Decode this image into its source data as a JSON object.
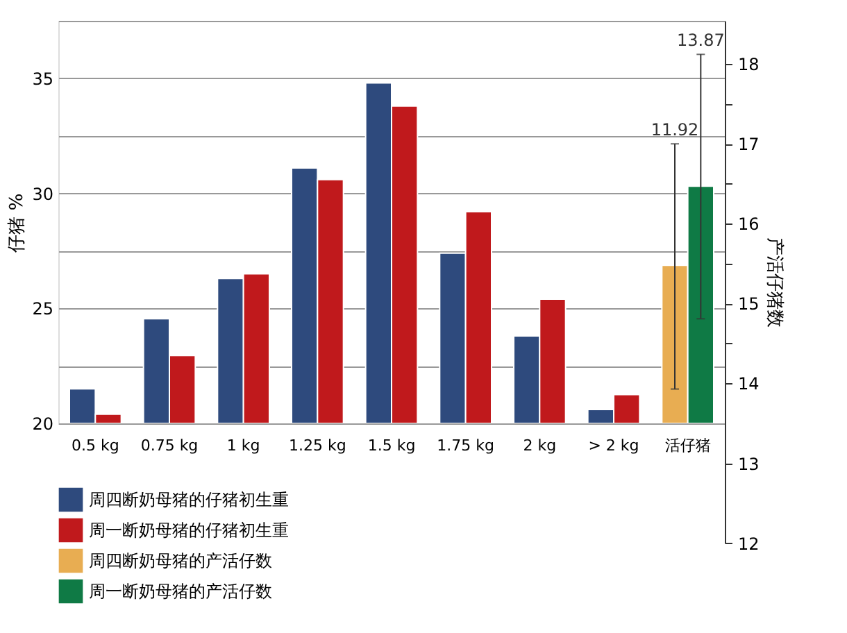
{
  "chart_data": {
    "type": "bar",
    "categories": [
      "0.5 kg",
      "0.75 kg",
      "1 kg",
      "1.25 kg",
      "1.5 kg",
      "1.75 kg",
      "2 kg",
      "> 2 kg",
      "活仔猪"
    ],
    "ylabel": "仔猪 %",
    "y2label": "产活仔猪数",
    "series": [
      {
        "name": "周四断奶母猪的仔猪初生重",
        "color": "#2e4a7d",
        "values": [
          21.5,
          24.55,
          26.3,
          31.1,
          34.8,
          27.4,
          23.8,
          20.6,
          null
        ]
      },
      {
        "name": "周一断奶母猪的仔猪初生重",
        "color": "#c0191c",
        "values": [
          20.4,
          22.95,
          26.5,
          30.6,
          33.8,
          29.2,
          25.4,
          21.25,
          null
        ]
      },
      {
        "name": "周四断奶母猪的产活仔数",
        "color": "#e8ad52",
        "axis": "y2",
        "values": [
          null,
          null,
          null,
          null,
          null,
          null,
          null,
          null,
          1.98
        ],
        "base": [
          null,
          null,
          null,
          null,
          null,
          null,
          null,
          null,
          13.5
        ],
        "errors": [
          null,
          null,
          null,
          null,
          null,
          null,
          null,
          null,
          [
            13.93,
            17.0
          ]
        ]
      },
      {
        "name": "周一断奶母猪的产活仔数",
        "color": "#0f7a45",
        "axis": "y2",
        "values": [
          null,
          null,
          null,
          null,
          null,
          null,
          null,
          null,
          2.97
        ],
        "base": [
          null,
          null,
          null,
          null,
          null,
          null,
          null,
          null,
          13.5
        ],
        "errors": [
          null,
          null,
          null,
          null,
          null,
          null,
          null,
          null,
          [
            14.81,
            18.12
          ]
        ]
      }
    ],
    "annotations": [
      "11.92",
      "13.87"
    ],
    "ylim": [
      20,
      37.5
    ],
    "yticks": [
      20,
      {
        "value": 22.5,
        "label": null
      },
      25,
      {
        "value": 27.5,
        "label": null
      },
      30,
      {
        "value": 32.5,
        "label": null
      },
      35,
      {
        "value": 37.5,
        "label": null
      }
    ],
    "y2lim": [
      12,
      18.54
    ],
    "y2ticks": [
      12,
      13,
      14,
      {
        "value": 14.5,
        "label": null
      },
      15,
      {
        "value": 15.5,
        "label": null
      },
      16,
      {
        "value": 16.5,
        "label": null
      },
      17,
      {
        "value": 17.5,
        "label": null
      },
      18
    ],
    "grid": "y",
    "legend": "bottom left"
  }
}
